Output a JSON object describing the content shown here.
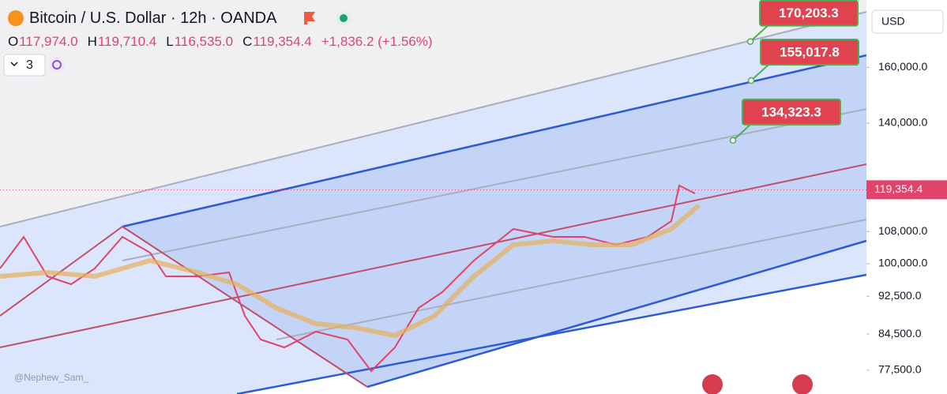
{
  "header": {
    "title": "Bitcoin / U.S. Dollar · 12h · OANDA",
    "ohlc": [
      {
        "key": "O",
        "value": "117,974.0"
      },
      {
        "key": "H",
        "value": "119,710.4"
      },
      {
        "key": "L",
        "value": "116,535.0"
      },
      {
        "key": "C",
        "value": "119,354.4"
      }
    ],
    "change": "+1,836.2 (+1.56%)",
    "count": "3"
  },
  "currency": "USD",
  "watermark": "@Nephew_Sam_",
  "price_axis": {
    "log_scale": true,
    "ylim": [
      73200,
      188000
    ],
    "yticks": [
      {
        "value": 160000,
        "label": "160,000.0"
      },
      {
        "value": 140000,
        "label": "140,000.0"
      },
      {
        "value": 108000,
        "label": "108,000.0"
      },
      {
        "value": 100000,
        "label": "100,000.0"
      },
      {
        "value": 92500,
        "label": "92,500.0"
      },
      {
        "value": 84500,
        "label": "84,500.0"
      },
      {
        "value": 77500,
        "label": "77,500.0"
      }
    ],
    "current_price": {
      "value": 119354.4,
      "label": "119,354.4"
    }
  },
  "callouts": [
    {
      "value": 170203.3,
      "label": "170,203.3",
      "x": 950
    },
    {
      "value": 155017.8,
      "label": "155,017.8",
      "x": 951
    },
    {
      "value": 134323.3,
      "label": "134,323.3",
      "x": 928
    }
  ]
}
